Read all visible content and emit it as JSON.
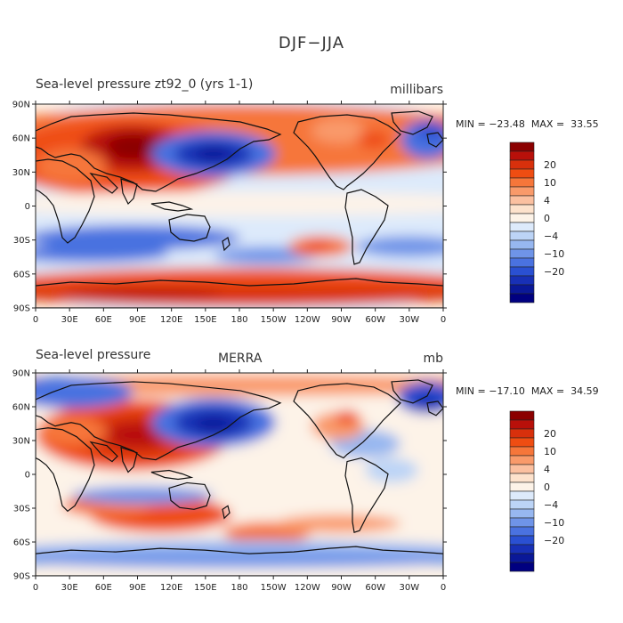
{
  "figure": {
    "title": "DJF−JJA"
  },
  "panels": [
    {
      "title_left": "Sea-level pressure  zt92_0 (yrs 1-1)",
      "title_center": "",
      "units": "millibars",
      "min_label": "MIN = ",
      "min_value": "−23.48",
      "max_label": "MAX = ",
      "max_value": "33.55"
    },
    {
      "title_left": "Sea-level pressure",
      "title_center": "MERRA",
      "units": "mb",
      "min_label": "MIN = ",
      "min_value": "−17.10",
      "max_label": "MAX = ",
      "max_value": "34.59"
    }
  ],
  "axes": {
    "lat_ticks": [
      "90N",
      "60N",
      "30N",
      "0",
      "30S",
      "60S",
      "90S"
    ],
    "lon_ticks": [
      "0",
      "30E",
      "60E",
      "90E",
      "120E",
      "150E",
      "180",
      "150W",
      "120W",
      "90W",
      "60W",
      "30W",
      "0"
    ]
  },
  "colorbar": {
    "labels": [
      "20",
      "10",
      "4",
      "0",
      "−4",
      "−10",
      "−20"
    ],
    "colors": [
      "#8b0000",
      "#b8100a",
      "#d8300c",
      "#ef4d12",
      "#f6763a",
      "#f99a6a",
      "#fbc0a0",
      "#fde2cc",
      "#fdf3e8",
      "#ddeafb",
      "#bcd4f6",
      "#97b7f0",
      "#6f94e8",
      "#4a72e0",
      "#2a50d2",
      "#1830b6",
      "#0a1898",
      "#000080"
    ]
  },
  "legend": {}
}
